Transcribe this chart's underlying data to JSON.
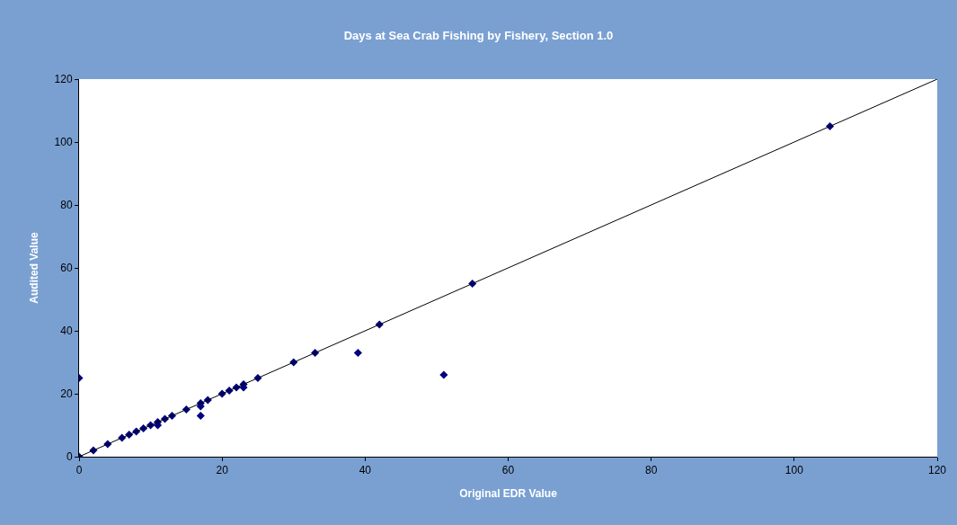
{
  "chart_data": {
    "type": "scatter",
    "title": "Days at Sea Crab Fishing by Fishery, Section 1.0",
    "xlabel": "Original EDR Value",
    "ylabel": "Audited Value",
    "xlim": [
      0,
      120
    ],
    "ylim": [
      0,
      120
    ],
    "xticks": [
      0,
      20,
      40,
      60,
      80,
      100,
      120
    ],
    "yticks": [
      0,
      20,
      40,
      60,
      80,
      100,
      120
    ],
    "grid": false,
    "marker": "diamond",
    "series": [
      {
        "color": "#000080",
        "x": [
          0,
          0,
          2,
          4,
          6,
          7,
          8,
          9,
          10,
          11,
          11,
          12,
          13,
          15,
          17,
          17,
          17,
          18,
          20,
          21,
          22,
          23,
          23,
          25,
          30,
          33,
          39,
          42,
          51,
          55,
          105
        ],
        "values": [
          0,
          25,
          2,
          4,
          6,
          7,
          8,
          9,
          10,
          11,
          10,
          12,
          13,
          15,
          17,
          16,
          13,
          18,
          20,
          21,
          22,
          23,
          22,
          25,
          30,
          33,
          33,
          42,
          26,
          55,
          105
        ]
      },
      {
        "type": "line",
        "color": "#000000",
        "line_style": "solid",
        "marker": "none",
        "x": [
          0,
          120
        ],
        "values": [
          0,
          120
        ]
      }
    ]
  }
}
